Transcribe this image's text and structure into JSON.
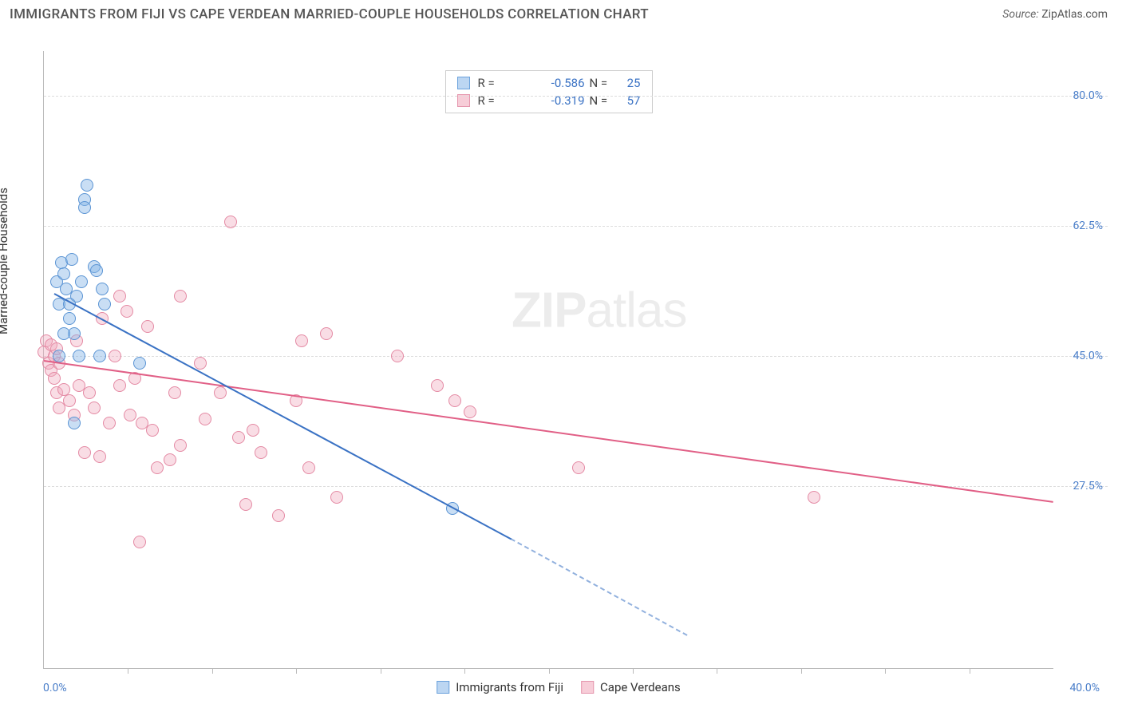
{
  "header": {
    "title": "IMMIGRANTS FROM FIJI VS CAPE VERDEAN MARRIED-COUPLE HOUSEHOLDS CORRELATION CHART",
    "source_label": "Source:",
    "source_value": "ZipAtlas.com"
  },
  "chart": {
    "type": "scatter",
    "y_axis_label": "Married-couple Households",
    "x_min_label": "0.0%",
    "x_max_label": "40.0%",
    "x_domain": [
      0,
      40
    ],
    "y_domain": [
      3,
      86
    ],
    "x_tick_positions": [
      3.33,
      6.67,
      10.0,
      13.33,
      16.67,
      20.0,
      23.33,
      26.67,
      30.0,
      33.33,
      36.67
    ],
    "y_ticks": [
      {
        "pos": 27.5,
        "label": "27.5%"
      },
      {
        "pos": 45.0,
        "label": "45.0%"
      },
      {
        "pos": 62.5,
        "label": "62.5%"
      },
      {
        "pos": 80.0,
        "label": "80.0%"
      }
    ],
    "grid_color": "#dddddd",
    "background_color": "#ffffff",
    "watermark_zip": "ZIP",
    "watermark_atlas": "atlas",
    "legend": {
      "series_a": {
        "label": "Immigrants from Fiji",
        "fill": "#bcd6f2",
        "border": "#6aa1dc"
      },
      "series_b": {
        "label": "Cape Verdeans",
        "fill": "#f7cdd8",
        "border": "#e595ad"
      }
    },
    "stats": {
      "a": {
        "r_label": "R =",
        "r": "-0.586",
        "n_label": "N =",
        "n": "25"
      },
      "b": {
        "r_label": "R =",
        "r": "-0.319",
        "n_label": "N =",
        "n": "57"
      }
    },
    "series_a": {
      "color_fill": "rgba(135,181,230,0.45)",
      "color_border": "#5a94d4",
      "radius": 8,
      "trend_color": "#3a72c4",
      "trend_solid": {
        "x1": 0.4,
        "y1": 53.5,
        "x2": 18.5,
        "y2": 20.5
      },
      "trend_dash": {
        "x1": 18.5,
        "y1": 20.5,
        "x2": 25.5,
        "y2": 7.5
      },
      "points": [
        [
          0.5,
          55
        ],
        [
          0.6,
          52
        ],
        [
          0.7,
          57.5
        ],
        [
          0.8,
          56
        ],
        [
          0.9,
          54
        ],
        [
          1.0,
          50
        ],
        [
          1.1,
          58
        ],
        [
          1.2,
          48
        ],
        [
          1.3,
          53
        ],
        [
          1.5,
          55
        ],
        [
          1.6,
          66
        ],
        [
          1.7,
          68
        ],
        [
          1.6,
          65
        ],
        [
          2.0,
          57
        ],
        [
          2.1,
          56.5
        ],
        [
          2.3,
          54
        ],
        [
          0.8,
          48
        ],
        [
          0.6,
          45
        ],
        [
          1.4,
          45
        ],
        [
          2.2,
          45
        ],
        [
          1.2,
          36
        ],
        [
          3.8,
          44
        ],
        [
          2.4,
          52
        ],
        [
          16.2,
          24.5
        ],
        [
          1.0,
          52
        ]
      ]
    },
    "series_b": {
      "color_fill": "rgba(240,170,190,0.4)",
      "color_border": "#e48aa4",
      "radius": 8,
      "trend_color": "#e15f86",
      "trend": {
        "x1": 0.0,
        "y1": 44.5,
        "x2": 40.0,
        "y2": 25.5
      },
      "points": [
        [
          0.0,
          45.5
        ],
        [
          0.1,
          47
        ],
        [
          0.2,
          44
        ],
        [
          0.3,
          46.5
        ],
        [
          0.3,
          43
        ],
        [
          0.4,
          45
        ],
        [
          0.4,
          42
        ],
        [
          0.5,
          46
        ],
        [
          0.5,
          40
        ],
        [
          0.6,
          44
        ],
        [
          0.6,
          38
        ],
        [
          0.8,
          40.5
        ],
        [
          1.0,
          39
        ],
        [
          1.2,
          37
        ],
        [
          1.3,
          47
        ],
        [
          1.4,
          41
        ],
        [
          1.6,
          32
        ],
        [
          1.8,
          40
        ],
        [
          2.0,
          38
        ],
        [
          2.2,
          31.5
        ],
        [
          2.3,
          50
        ],
        [
          2.6,
          36
        ],
        [
          2.8,
          45
        ],
        [
          3.0,
          53
        ],
        [
          3.0,
          41
        ],
        [
          3.3,
          51
        ],
        [
          3.4,
          37
        ],
        [
          3.6,
          42
        ],
        [
          3.8,
          20
        ],
        [
          4.1,
          49
        ],
        [
          4.3,
          35
        ],
        [
          4.5,
          30
        ],
        [
          5.0,
          31
        ],
        [
          5.2,
          40
        ],
        [
          5.4,
          53
        ],
        [
          5.4,
          33
        ],
        [
          6.2,
          44
        ],
        [
          6.4,
          36.5
        ],
        [
          7.0,
          40
        ],
        [
          7.4,
          63
        ],
        [
          7.7,
          34
        ],
        [
          8.0,
          25
        ],
        [
          8.3,
          35
        ],
        [
          8.6,
          32
        ],
        [
          9.3,
          23.5
        ],
        [
          10.0,
          39
        ],
        [
          10.2,
          47
        ],
        [
          10.5,
          30
        ],
        [
          11.2,
          48
        ],
        [
          11.6,
          26
        ],
        [
          14.0,
          45
        ],
        [
          15.6,
          41
        ],
        [
          16.3,
          39
        ],
        [
          16.9,
          37.5
        ],
        [
          21.2,
          30
        ],
        [
          30.5,
          26
        ],
        [
          3.9,
          36
        ]
      ]
    }
  }
}
